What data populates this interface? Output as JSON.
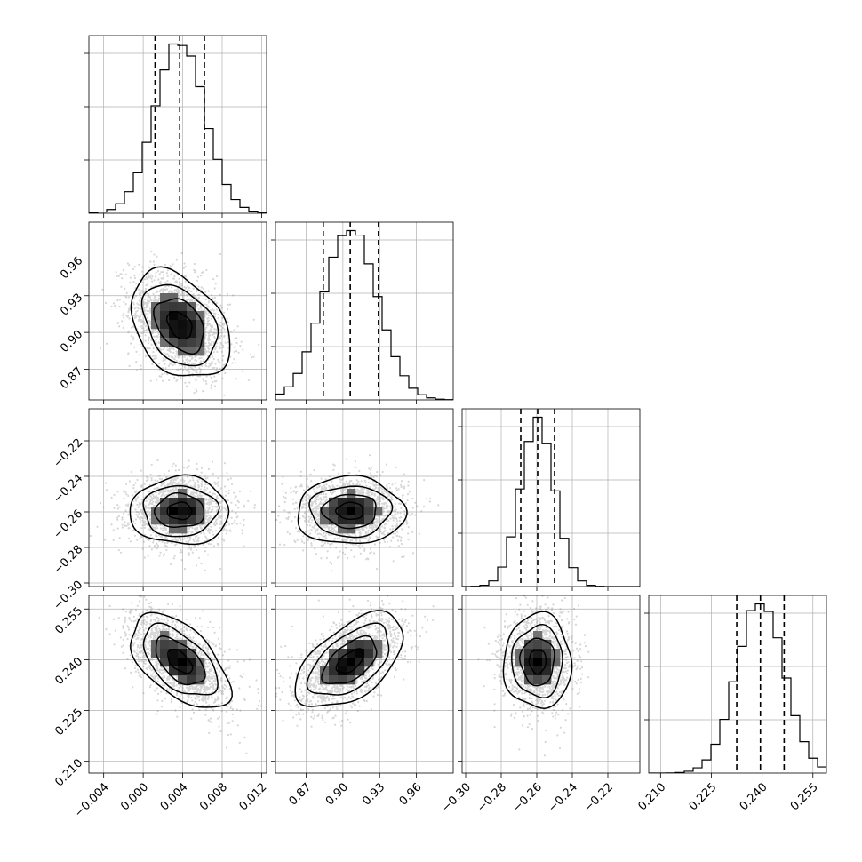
{
  "chart_data": {
    "type": "corner",
    "grid": true,
    "parameters": [
      {
        "range": [
          -0.0055,
          0.0125
        ],
        "ticks": [
          -0.004,
          0.0,
          0.004,
          0.008,
          0.012
        ],
        "tick_labels": [
          "−0.004",
          "0.000",
          "0.004",
          "0.008",
          "0.012"
        ],
        "quantiles": [
          0.0012,
          0.0037,
          0.0062
        ],
        "median": 0.0037,
        "sigma": 0.0025
      },
      {
        "range": [
          0.845,
          0.99
        ],
        "ticks": [
          0.87,
          0.9,
          0.93,
          0.96
        ],
        "tick_labels": [
          "0.87",
          "0.90",
          "0.93",
          "0.96"
        ],
        "quantiles": [
          0.884,
          0.906,
          0.929
        ],
        "median": 0.906,
        "sigma": 0.022
      },
      {
        "range": [
          -0.302,
          -0.202
        ],
        "ticks": [
          -0.3,
          -0.28,
          -0.26,
          -0.24,
          -0.22
        ],
        "tick_labels": [
          "−0.30",
          "−0.28",
          "−0.26",
          "−0.24",
          "−0.22"
        ],
        "quantiles": [
          -0.269,
          -0.2595,
          -0.25
        ],
        "median": -0.2595,
        "sigma": 0.0095
      },
      {
        "range": [
          0.2065,
          0.259
        ],
        "ticks": [
          0.21,
          0.225,
          0.24,
          0.255
        ],
        "tick_labels": [
          "0.210",
          "0.225",
          "0.240",
          "0.255"
        ],
        "quantiles": [
          0.2325,
          0.2395,
          0.2465
        ],
        "median": 0.2395,
        "sigma": 0.007
      }
    ],
    "correlations": [
      [
        1.0,
        -0.35,
        0.0,
        -0.55
      ],
      [
        -0.35,
        1.0,
        0.0,
        0.55
      ],
      [
        0.0,
        0.0,
        1.0,
        0.0
      ],
      [
        -0.55,
        0.55,
        0.0,
        1.0
      ]
    ],
    "contour_levels_sigma": [
      0.5,
      1.0,
      1.5,
      2.0
    ],
    "histogram_bins": 20
  }
}
